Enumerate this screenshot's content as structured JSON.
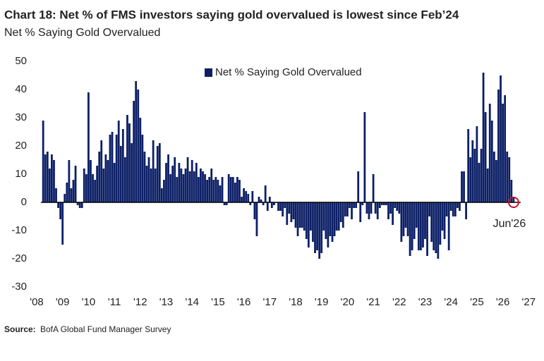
{
  "chart_data": {
    "type": "bar",
    "title": "Chart 18: Net % of FMS investors saying gold overvalued is lowest since Feb’24",
    "subtitle": "Net % Saying Gold Overvalued",
    "source_label": "Source:",
    "source": "BofA Global Fund Manager Survey",
    "ylim": [
      -30,
      50
    ],
    "yticks": [
      -30,
      -20,
      -10,
      0,
      10,
      20,
      30,
      40,
      50
    ],
    "xlim": [
      2007.9,
      2027.4
    ],
    "xticks": [
      {
        "value": 2008,
        "label": "'08"
      },
      {
        "value": 2009,
        "label": "'09"
      },
      {
        "value": 2010,
        "label": "'10"
      },
      {
        "value": 2011,
        "label": "'11"
      },
      {
        "value": 2012,
        "label": "'12"
      },
      {
        "value": 2013,
        "label": "'13"
      },
      {
        "value": 2014,
        "label": "'14"
      },
      {
        "value": 2015,
        "label": "'15"
      },
      {
        "value": 2016,
        "label": "'16"
      },
      {
        "value": 2017,
        "label": "'17"
      },
      {
        "value": 2018,
        "label": "'18"
      },
      {
        "value": 2019,
        "label": "'19"
      },
      {
        "value": 2020,
        "label": "'20"
      },
      {
        "value": 2021,
        "label": "'21"
      },
      {
        "value": 2022,
        "label": "'22"
      },
      {
        "value": 2023,
        "label": "'23"
      },
      {
        "value": 2024,
        "label": "'24"
      },
      {
        "value": 2025,
        "label": "'25"
      },
      {
        "value": 2026,
        "label": "'26"
      },
      {
        "value": 2027,
        "label": "'27"
      }
    ],
    "legend": "top",
    "annotation": {
      "text": "Jun'26",
      "x": 2026.417,
      "color": "#c8102e"
    },
    "x": [
      2008.25,
      2008.333,
      2008.417,
      2008.5,
      2008.583,
      2008.667,
      2008.75,
      2008.833,
      2008.917,
      2009,
      2009.083,
      2009.167,
      2009.25,
      2009.333,
      2009.417,
      2009.5,
      2009.583,
      2009.667,
      2009.75,
      2009.833,
      2009.917,
      2010,
      2010.083,
      2010.167,
      2010.25,
      2010.333,
      2010.417,
      2010.5,
      2010.583,
      2010.667,
      2010.75,
      2010.833,
      2010.917,
      2011,
      2011.083,
      2011.167,
      2011.25,
      2011.333,
      2011.417,
      2011.5,
      2011.583,
      2011.667,
      2011.75,
      2011.833,
      2011.917,
      2012,
      2012.083,
      2012.167,
      2012.25,
      2012.333,
      2012.417,
      2012.5,
      2012.583,
      2012.667,
      2012.75,
      2012.833,
      2012.917,
      2013,
      2013.083,
      2013.167,
      2013.25,
      2013.333,
      2013.417,
      2013.5,
      2013.583,
      2013.667,
      2013.75,
      2013.833,
      2013.917,
      2014,
      2014.083,
      2014.167,
      2014.25,
      2014.333,
      2014.417,
      2014.5,
      2014.583,
      2014.667,
      2014.75,
      2014.833,
      2014.917,
      2015,
      2015.083,
      2015.167,
      2015.25,
      2015.333,
      2015.417,
      2015.5,
      2015.583,
      2015.667,
      2015.75,
      2015.833,
      2015.917,
      2016,
      2016.083,
      2016.167,
      2016.25,
      2016.333,
      2016.417,
      2016.5,
      2016.583,
      2016.667,
      2016.75,
      2016.833,
      2016.917,
      2017,
      2017.083,
      2017.167,
      2017.25,
      2017.333,
      2017.417,
      2017.5,
      2017.583,
      2017.667,
      2017.75,
      2017.833,
      2017.917,
      2018,
      2018.083,
      2018.167,
      2018.25,
      2018.333,
      2018.417,
      2018.5,
      2018.583,
      2018.667,
      2018.75,
      2018.833,
      2018.917,
      2019,
      2019.083,
      2019.167,
      2019.25,
      2019.333,
      2019.417,
      2019.5,
      2019.583,
      2019.667,
      2019.75,
      2019.833,
      2019.917,
      2020,
      2020.083,
      2020.167,
      2020.25,
      2020.333,
      2020.417,
      2020.5,
      2020.583,
      2020.667,
      2020.75,
      2020.833,
      2020.917,
      2021,
      2021.083,
      2021.167,
      2021.25,
      2021.333,
      2021.417,
      2021.5,
      2021.583,
      2021.667,
      2021.75,
      2021.833,
      2021.917,
      2022,
      2022.083,
      2022.167,
      2022.25,
      2022.333,
      2022.417,
      2022.5,
      2022.583,
      2022.667,
      2022.75,
      2022.833,
      2022.917,
      2023,
      2023.083,
      2023.167,
      2023.25,
      2023.333,
      2023.417,
      2023.5,
      2023.583,
      2023.667,
      2023.75,
      2023.833,
      2023.917,
      2024,
      2024.083,
      2024.167,
      2024.25,
      2024.333,
      2024.417,
      2024.5,
      2024.583,
      2024.667,
      2024.75,
      2024.833,
      2024.917,
      2025,
      2025.083,
      2025.167,
      2025.25,
      2025.333,
      2025.417,
      2025.5,
      2025.583,
      2025.667,
      2025.75,
      2025.833,
      2025.917,
      2026,
      2026.083,
      2026.167,
      2026.25,
      2026.333,
      2026.417
    ],
    "series": [
      {
        "name": "Net % Saying Gold Overvalued",
        "color": "#0c1f66",
        "values": [
          29,
          17,
          18,
          12,
          17,
          15,
          5,
          -2,
          -6,
          -15,
          3,
          7,
          15,
          5,
          8,
          13,
          -1,
          -2,
          -2,
          12,
          10,
          39,
          15,
          10,
          8,
          13,
          18,
          22,
          12,
          17,
          15,
          24,
          25,
          14,
          24,
          29,
          20,
          26,
          16,
          31,
          28,
          21,
          36,
          43,
          40,
          30,
          24,
          18,
          13,
          16,
          12,
          22,
          12,
          20,
          21,
          5,
          8,
          14,
          17,
          10,
          13,
          16,
          9,
          14,
          12,
          10,
          12,
          16,
          11,
          15,
          11,
          14,
          9,
          12,
          11,
          10,
          8,
          9,
          12,
          8,
          9,
          8,
          6,
          9,
          -1,
          -1,
          10,
          9,
          9,
          7,
          9,
          8,
          2,
          5,
          4,
          3,
          -1,
          4,
          -6,
          -12,
          2,
          1,
          -1,
          6,
          -3,
          2,
          -2,
          -1,
          0,
          -3,
          -3,
          -5,
          -2,
          -8,
          -4,
          -7,
          -6,
          -9,
          -12,
          -9,
          -9,
          -10,
          -13,
          -16,
          -10,
          -14,
          -18,
          -17,
          -20,
          -18,
          -10,
          -13,
          -16,
          -12,
          -14,
          -12,
          -10,
          -10,
          -7,
          -9,
          -5,
          -5,
          -2,
          -6,
          -2,
          -2,
          11,
          -7,
          -1,
          32,
          -4,
          -6,
          -4,
          10,
          -4,
          -6,
          -2,
          -1,
          -1,
          -1,
          -6,
          -4,
          -8,
          -2,
          -3,
          -4,
          -14,
          -12,
          -9,
          -12,
          -19,
          -17,
          -13,
          -9,
          -17,
          -17,
          -16,
          -13,
          -19,
          -5,
          -14,
          -17,
          -18,
          -20,
          -15,
          -10,
          -13,
          -5,
          -17,
          -3,
          -5,
          -5,
          -2,
          -3,
          11,
          11,
          -6,
          26,
          16,
          22,
          19,
          27,
          14,
          19,
          46,
          32,
          12,
          35,
          29,
          18,
          15,
          40,
          45,
          35,
          38,
          18,
          16,
          8,
          2
        ]
      }
    ]
  }
}
